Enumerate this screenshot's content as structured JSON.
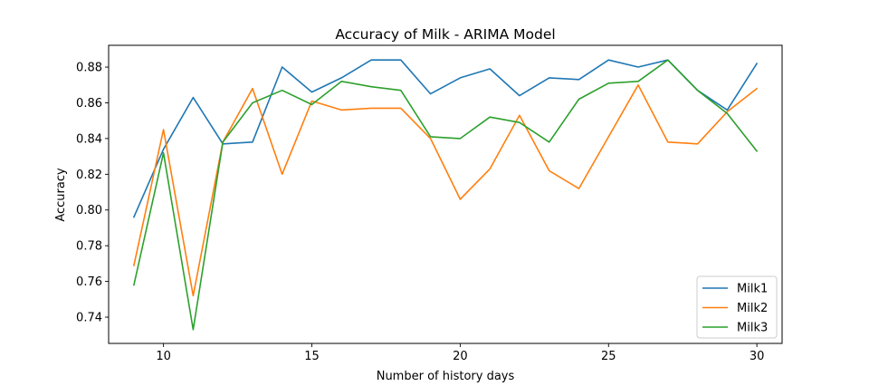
{
  "chart_data": {
    "type": "line",
    "title": "Accuracy of Milk - ARIMA Model",
    "xlabel": "Number of history days",
    "ylabel": "Accuracy",
    "xlim": [
      8.15,
      30.85
    ],
    "ylim": [
      0.7253,
      0.8922
    ],
    "xticks": [
      10,
      15,
      20,
      25,
      30
    ],
    "yticks": [
      0.74,
      0.76,
      0.78,
      0.8,
      0.82,
      0.84,
      0.86,
      0.88
    ],
    "ytick_labels": [
      "0.74",
      "0.76",
      "0.78",
      "0.80",
      "0.82",
      "0.84",
      "0.86",
      "0.88"
    ],
    "grid": false,
    "legend_position": "lower right",
    "x": [
      9,
      10,
      11,
      12,
      13,
      14,
      15,
      16,
      17,
      18,
      19,
      20,
      21,
      22,
      23,
      24,
      25,
      26,
      27,
      28,
      29,
      30
    ],
    "series": [
      {
        "name": "Milk1",
        "color": "#1f77b4",
        "values": [
          0.796,
          0.834,
          0.863,
          0.837,
          0.838,
          0.88,
          0.866,
          0.874,
          0.884,
          0.884,
          0.865,
          0.874,
          0.879,
          0.864,
          0.874,
          0.873,
          0.884,
          0.88,
          0.884,
          0.867,
          0.856,
          0.882
        ]
      },
      {
        "name": "Milk2",
        "color": "#ff7f0e",
        "values": [
          0.769,
          0.845,
          0.752,
          0.838,
          0.868,
          0.82,
          0.861,
          0.856,
          0.857,
          0.857,
          0.84,
          0.806,
          0.823,
          0.853,
          0.822,
          0.812,
          0.841,
          0.87,
          0.838,
          0.837,
          0.855,
          0.868
        ]
      },
      {
        "name": "Milk3",
        "color": "#2ca02c",
        "values": [
          0.758,
          0.832,
          0.733,
          0.838,
          0.86,
          0.867,
          0.859,
          0.872,
          0.869,
          0.867,
          0.841,
          0.84,
          0.852,
          0.849,
          0.838,
          0.862,
          0.871,
          0.872,
          0.884,
          0.867,
          0.854,
          0.833
        ]
      }
    ]
  }
}
